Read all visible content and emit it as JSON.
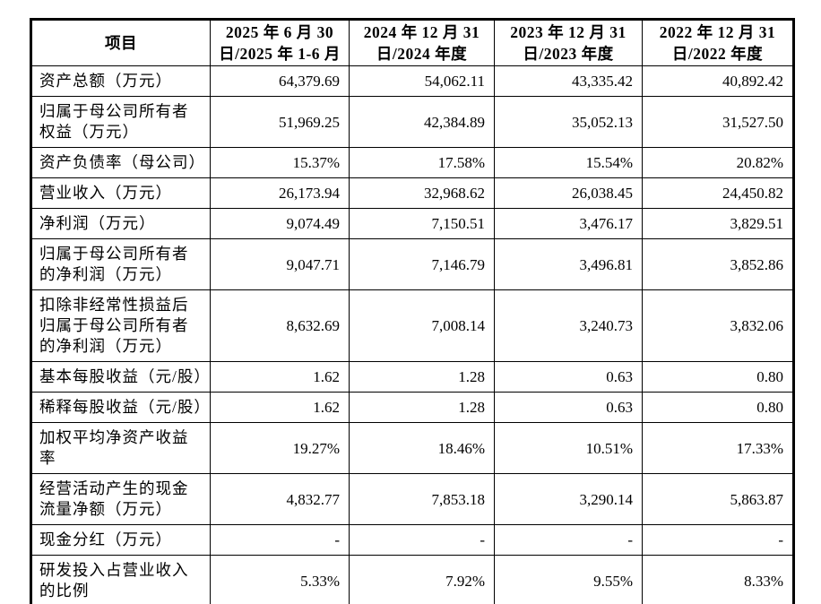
{
  "table": {
    "name": "financial-summary-table",
    "header": [
      "项目",
      "2025 年 6 月 30\n日/2025 年 1-6 月",
      "2024 年 12 月 31\n日/2024 年度",
      "2023 年 12 月 31\n日/2023 年度",
      "2022 年 12 月 31\n日/2022 年度"
    ],
    "rows": [
      {
        "label": "资产总额（万元）",
        "values": [
          "64,379.69",
          "54,062.11",
          "43,335.42",
          "40,892.42"
        ]
      },
      {
        "label": "归属于母公司所有者\n权益（万元）",
        "values": [
          "51,969.25",
          "42,384.89",
          "35,052.13",
          "31,527.50"
        ]
      },
      {
        "label": "资产负债率（母公司）",
        "values": [
          "15.37%",
          "17.58%",
          "15.54%",
          "20.82%"
        ]
      },
      {
        "label": "营业收入（万元）",
        "values": [
          "26,173.94",
          "32,968.62",
          "26,038.45",
          "24,450.82"
        ]
      },
      {
        "label": "净利润（万元）",
        "values": [
          "9,074.49",
          "7,150.51",
          "3,476.17",
          "3,829.51"
        ]
      },
      {
        "label": "归属于母公司所有者\n的净利润（万元）",
        "values": [
          "9,047.71",
          "7,146.79",
          "3,496.81",
          "3,852.86"
        ]
      },
      {
        "label": "扣除非经常性损益后\n归属于母公司所有者\n的净利润（万元）",
        "values": [
          "8,632.69",
          "7,008.14",
          "3,240.73",
          "3,832.06"
        ]
      },
      {
        "label": "基本每股收益（元/股）",
        "values": [
          "1.62",
          "1.28",
          "0.63",
          "0.80"
        ]
      },
      {
        "label": "稀释每股收益（元/股）",
        "values": [
          "1.62",
          "1.28",
          "0.63",
          "0.80"
        ]
      },
      {
        "label": "加权平均净资产收益\n率",
        "values": [
          "19.27%",
          "18.46%",
          "10.51%",
          "17.33%"
        ]
      },
      {
        "label": "经营活动产生的现金\n流量净额（万元）",
        "values": [
          "4,832.77",
          "7,853.18",
          "3,290.14",
          "5,863.87"
        ]
      },
      {
        "label": "现金分红（万元）",
        "values": [
          "-",
          "-",
          "-",
          "-"
        ]
      },
      {
        "label": "研发投入占营业收入\n的比例",
        "values": [
          "5.33%",
          "7.92%",
          "9.55%",
          "8.33%"
        ]
      }
    ]
  }
}
